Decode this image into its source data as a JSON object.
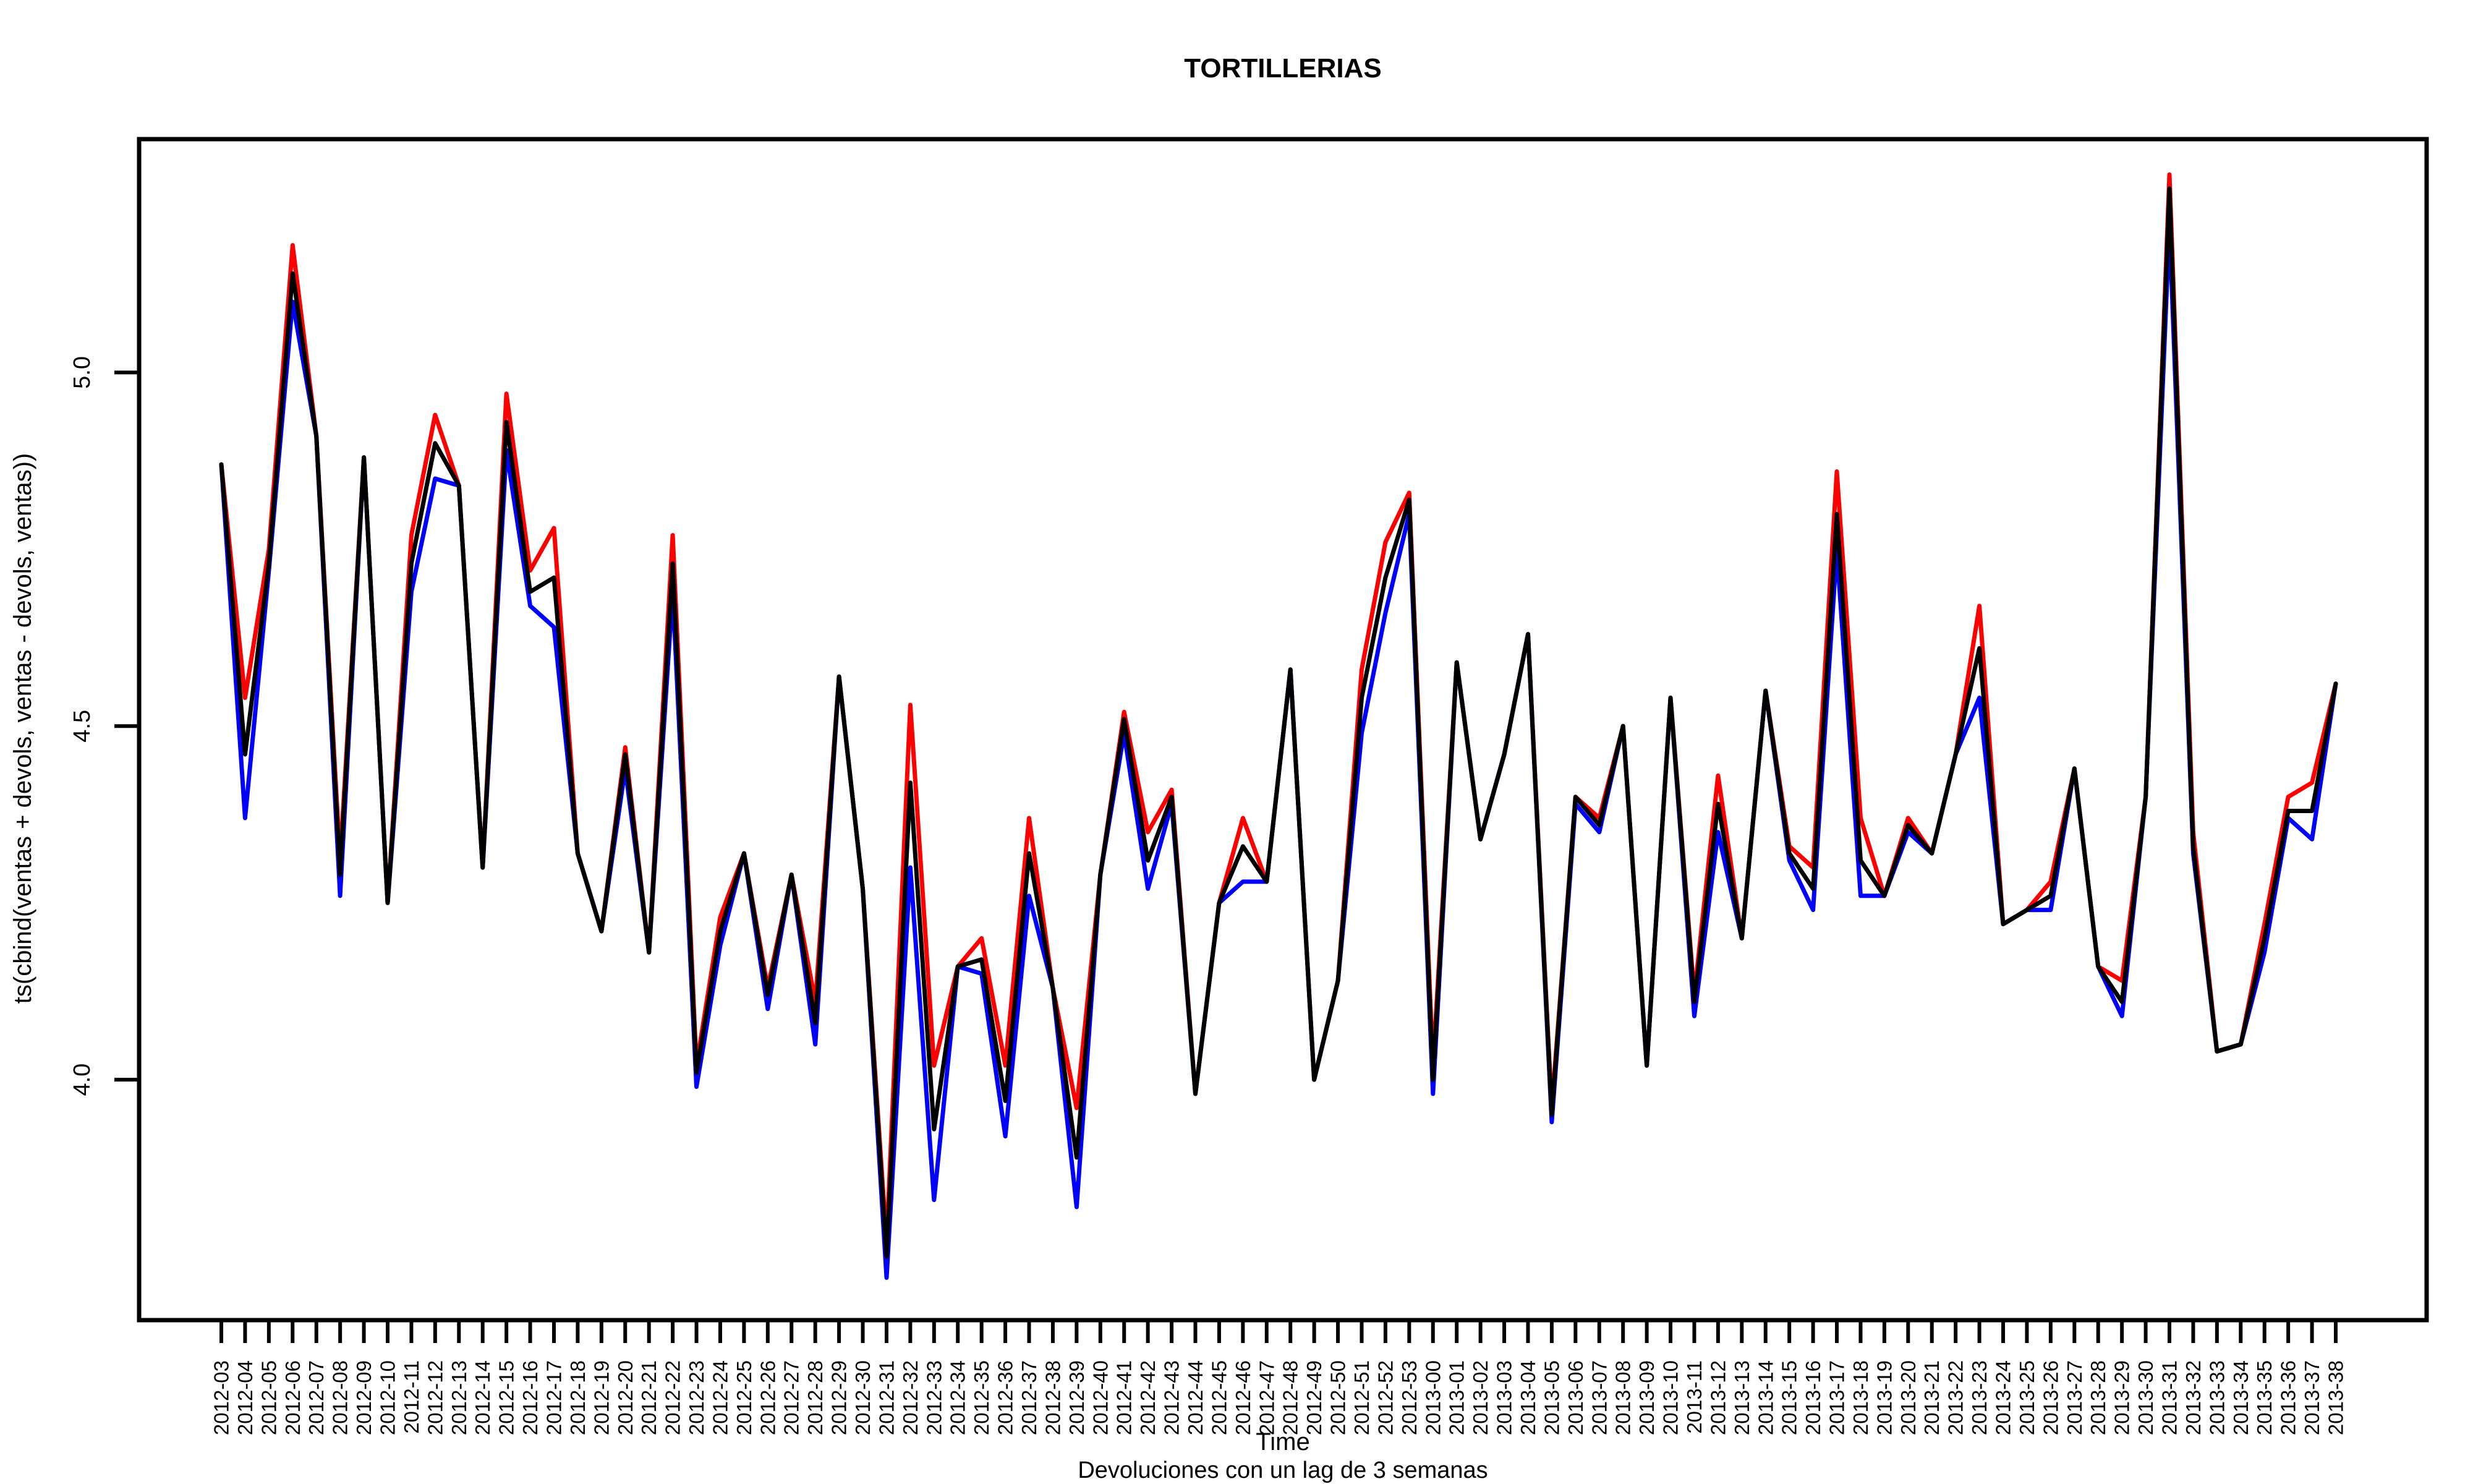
{
  "chart_data": {
    "type": "line",
    "title": "TORTILLERIAS",
    "xlabel": "Time",
    "subtitle": "Devoluciones con un lag de 3 semanas",
    "ylabel": "ts(cbind(ventas + devols, ventas - devols, ventas))",
    "ylim": [
      3.66,
      5.33
    ],
    "yticks": [
      4.0,
      4.5,
      5.0
    ],
    "ytick_labels": [
      "4.0",
      "4.5",
      "5.0"
    ],
    "grid": false,
    "legend": "none",
    "categories": [
      "2012-03",
      "2012-04",
      "2012-05",
      "2012-06",
      "2012-07",
      "2012-08",
      "2012-09",
      "2012-10",
      "2012-11",
      "2012-12",
      "2012-13",
      "2012-14",
      "2012-15",
      "2012-16",
      "2012-17",
      "2012-18",
      "2012-19",
      "2012-20",
      "2012-21",
      "2012-22",
      "2012-23",
      "2012-24",
      "2012-25",
      "2012-26",
      "2012-27",
      "2012-28",
      "2012-29",
      "2012-30",
      "2012-31",
      "2012-32",
      "2012-33",
      "2012-34",
      "2012-35",
      "2012-36",
      "2012-37",
      "2012-38",
      "2012-39",
      "2012-40",
      "2012-41",
      "2012-42",
      "2012-43",
      "2012-44",
      "2012-45",
      "2012-46",
      "2012-47",
      "2012-48",
      "2012-49",
      "2012-50",
      "2012-51",
      "2012-52",
      "2012-53",
      "2013-00",
      "2013-01",
      "2013-02",
      "2013-03",
      "2013-04",
      "2013-05",
      "2013-06",
      "2013-07",
      "2013-08",
      "2013-09",
      "2013-10",
      "2013-11",
      "2013-12",
      "2013-13",
      "2013-14",
      "2013-15",
      "2013-16",
      "2013-17",
      "2013-18",
      "2013-19",
      "2013-20",
      "2013-21",
      "2013-22",
      "2013-23",
      "2013-24",
      "2013-25",
      "2013-26",
      "2013-27",
      "2013-28",
      "2013-29",
      "2013-30",
      "2013-31",
      "2013-32",
      "2013-33",
      "2013-34",
      "2013-35",
      "2013-36",
      "2013-37",
      "2013-38"
    ],
    "series": [
      {
        "color": "#ff0000",
        "values": [
          4.87,
          4.54,
          4.75,
          5.18,
          4.91,
          4.31,
          4.88,
          4.25,
          4.77,
          4.94,
          4.84,
          4.3,
          4.97,
          4.72,
          4.78,
          4.32,
          4.21,
          4.47,
          4.18,
          4.77,
          4.02,
          4.23,
          4.32,
          4.13,
          4.29,
          4.11,
          4.57,
          4.27,
          3.77,
          4.53,
          4.02,
          4.16,
          4.2,
          4.02,
          4.37,
          4.13,
          3.96,
          4.29,
          4.52,
          4.35,
          4.41,
          3.98,
          4.25,
          4.37,
          4.28,
          4.58,
          4.0,
          4.14,
          4.58,
          4.76,
          4.83,
          4.02,
          4.59,
          4.34,
          4.46,
          4.63,
          3.96,
          4.4,
          4.37,
          4.5,
          4.02,
          4.54,
          4.12,
          4.43,
          4.2,
          4.55,
          4.33,
          4.3,
          4.86,
          4.37,
          4.26,
          4.37,
          4.32,
          4.46,
          4.67,
          4.22,
          4.24,
          4.28,
          4.44,
          4.16,
          4.14,
          4.4,
          5.28,
          4.35,
          4.04,
          4.05,
          4.22,
          4.4,
          4.42,
          4.56
        ]
      },
      {
        "color": "#0000ff",
        "values": [
          4.87,
          4.37,
          4.72,
          5.1,
          4.91,
          4.26,
          4.88,
          4.25,
          4.69,
          4.85,
          4.84,
          4.3,
          4.89,
          4.67,
          4.64,
          4.32,
          4.21,
          4.44,
          4.18,
          4.69,
          3.99,
          4.19,
          4.32,
          4.1,
          4.29,
          4.05,
          4.57,
          4.27,
          3.72,
          4.3,
          3.83,
          4.16,
          4.15,
          3.92,
          4.26,
          4.13,
          3.82,
          4.29,
          4.49,
          4.27,
          4.39,
          3.98,
          4.25,
          4.28,
          4.28,
          4.58,
          4.0,
          4.14,
          4.49,
          4.66,
          4.8,
          3.98,
          4.59,
          4.34,
          4.46,
          4.63,
          3.94,
          4.39,
          4.35,
          4.5,
          4.02,
          4.54,
          4.09,
          4.35,
          4.2,
          4.55,
          4.31,
          4.24,
          4.75,
          4.26,
          4.26,
          4.35,
          4.32,
          4.46,
          4.54,
          4.22,
          4.24,
          4.24,
          4.44,
          4.16,
          4.09,
          4.4,
          5.21,
          4.32,
          4.04,
          4.05,
          4.18,
          4.37,
          4.34,
          4.56
        ]
      },
      {
        "color": "#000000",
        "values": [
          4.87,
          4.46,
          4.73,
          5.14,
          4.91,
          4.29,
          4.88,
          4.25,
          4.73,
          4.9,
          4.84,
          4.3,
          4.93,
          4.69,
          4.71,
          4.32,
          4.21,
          4.46,
          4.18,
          4.73,
          4.01,
          4.21,
          4.32,
          4.12,
          4.29,
          4.08,
          4.57,
          4.27,
          3.75,
          4.42,
          3.93,
          4.16,
          4.17,
          3.97,
          4.32,
          4.13,
          3.89,
          4.29,
          4.51,
          4.31,
          4.4,
          3.98,
          4.25,
          4.33,
          4.28,
          4.58,
          4.0,
          4.14,
          4.54,
          4.71,
          4.82,
          4.0,
          4.59,
          4.34,
          4.46,
          4.63,
          3.95,
          4.4,
          4.36,
          4.5,
          4.02,
          4.54,
          4.11,
          4.39,
          4.2,
          4.55,
          4.32,
          4.27,
          4.8,
          4.31,
          4.26,
          4.36,
          4.32,
          4.46,
          4.61,
          4.22,
          4.24,
          4.26,
          4.44,
          4.16,
          4.11,
          4.4,
          5.26,
          4.33,
          4.04,
          4.05,
          4.2,
          4.38,
          4.38,
          4.56
        ]
      }
    ]
  }
}
